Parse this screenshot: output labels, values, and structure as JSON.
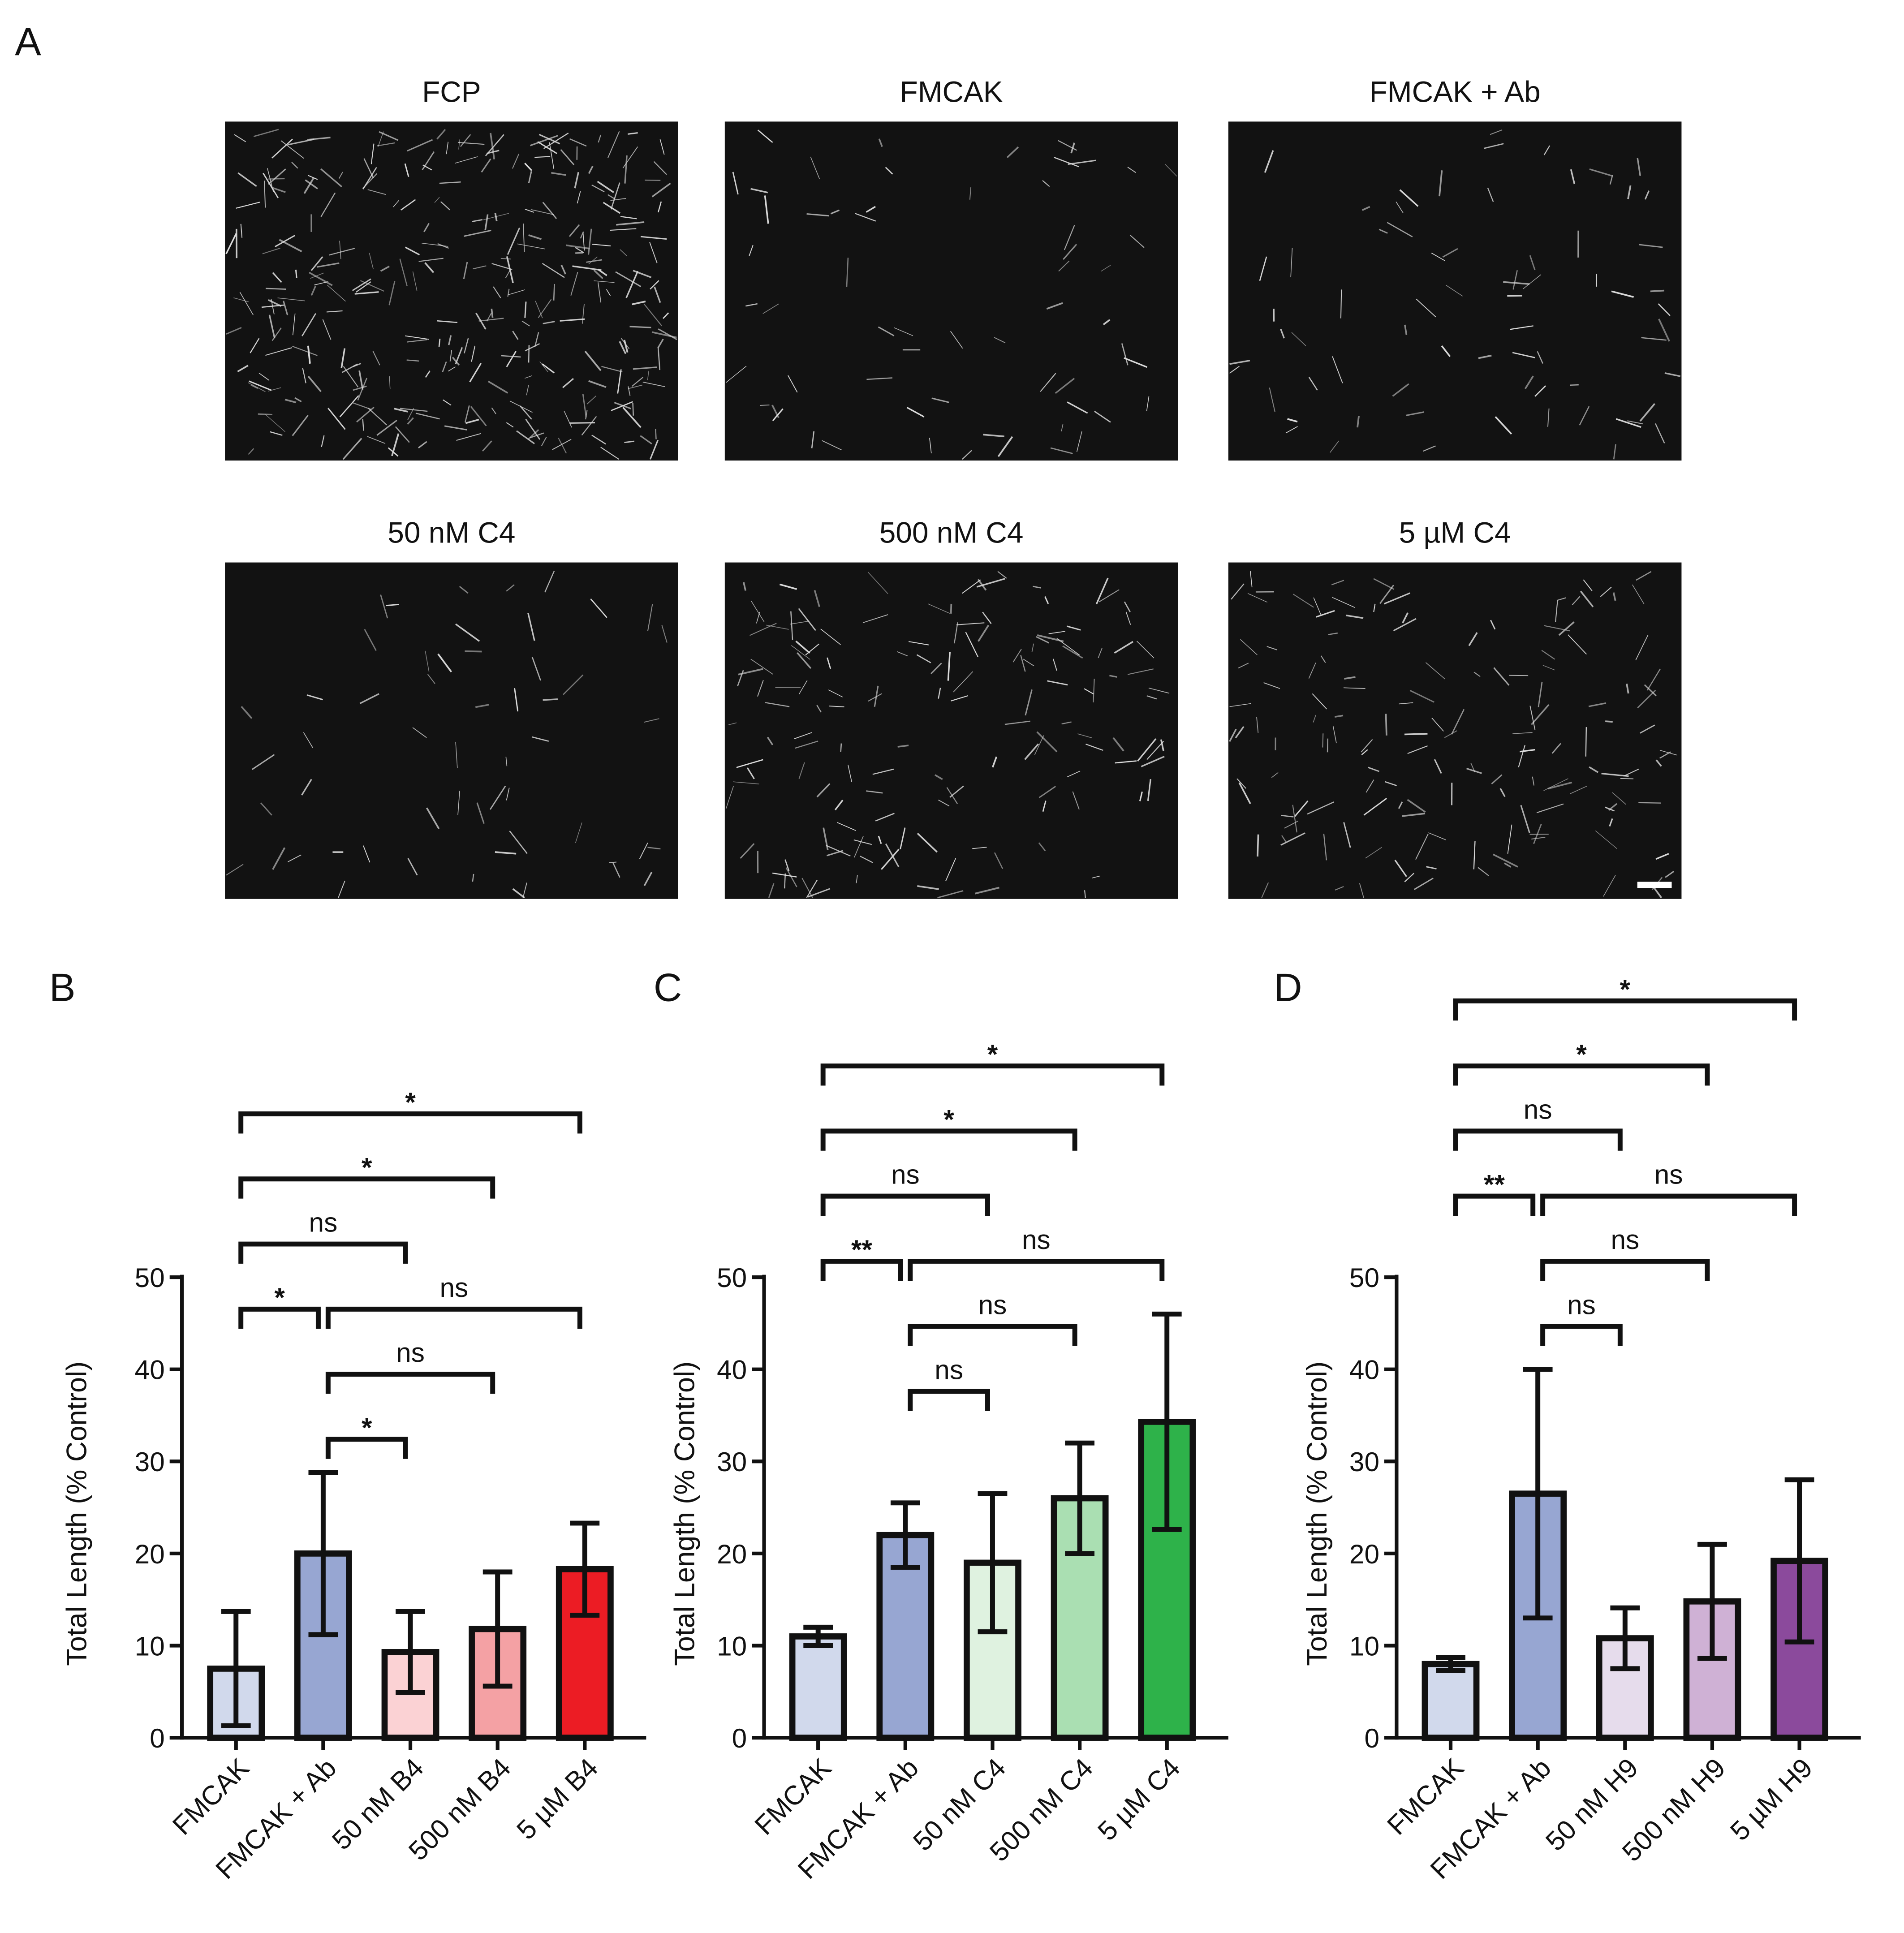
{
  "figure": {
    "panel_label": "A",
    "images": [
      {
        "title": "FCP"
      },
      {
        "title": "FMCAK"
      },
      {
        "title": "FMCAK + Ab"
      },
      {
        "title": "50 nM C4"
      },
      {
        "title": "500 nM C4"
      },
      {
        "title": "5 µM C4"
      }
    ]
  },
  "chart_data": [
    {
      "type": "bar",
      "panel_label": "B",
      "y_label": "Total Length  (% Control)",
      "categories": [
        "FMCAK",
        "FMCAK + Ab",
        "50 nM B4",
        "500 nM B4",
        "5 µM B4"
      ],
      "values": [
        7.5,
        20,
        9.3,
        11.8,
        18.3
      ],
      "errors": [
        6.2,
        8.8,
        4.4,
        6.2,
        5
      ],
      "colors": [
        "#d1d9ec",
        "#97a6d2",
        "#fbd2d4",
        "#f4a1a4",
        "#ec1c24"
      ],
      "ylim": [
        0,
        50
      ],
      "yticks": [
        0,
        10,
        20,
        30,
        40,
        50
      ],
      "brackets": [
        {
          "from": "FMCAK + Ab",
          "to": "50 nM B4",
          "label": "*"
        },
        {
          "from": "FMCAK + Ab",
          "to": "500 nM B4",
          "label": "ns"
        },
        {
          "from": "FMCAK",
          "to": "FMCAK + Ab",
          "label": "*"
        },
        {
          "from": "FMCAK + Ab",
          "to": "5 µM B4",
          "label": "ns"
        },
        {
          "from": "FMCAK",
          "to": "50 nM B4",
          "label": "ns"
        },
        {
          "from": "FMCAK",
          "to": "500 nM B4",
          "label": "*"
        },
        {
          "from": "FMCAK",
          "to": "5 µM B4",
          "label": "*"
        }
      ]
    },
    {
      "type": "bar",
      "panel_label": "C",
      "y_label": "Total Length  (% Control)",
      "categories": [
        "FMCAK",
        "FMCAK + Ab",
        "50 nM C4",
        "500 nM C4",
        "5 µM C4"
      ],
      "values": [
        11,
        22,
        19,
        26,
        34.3
      ],
      "errors": [
        1,
        3.5,
        7.5,
        6,
        11.7
      ],
      "colors": [
        "#d1d9ec",
        "#97a6d2",
        "#dff2e0",
        "#aadfb2",
        "#2eb24a"
      ],
      "ylim": [
        0,
        50
      ],
      "yticks": [
        0,
        10,
        20,
        30,
        40,
        50
      ],
      "brackets": [
        {
          "from": "FMCAK + Ab",
          "to": "50 nM C4",
          "label": "ns"
        },
        {
          "from": "FMCAK + Ab",
          "to": "500 nM C4",
          "label": "ns"
        },
        {
          "from": "FMCAK",
          "to": "FMCAK + Ab",
          "label": "**"
        },
        {
          "from": "FMCAK + Ab",
          "to": "5 µM C4",
          "label": "ns"
        },
        {
          "from": "FMCAK",
          "to": "50 nM C4",
          "label": "ns"
        },
        {
          "from": "FMCAK",
          "to": "500 nM C4",
          "label": "*"
        },
        {
          "from": "FMCAK",
          "to": "5 µM C4",
          "label": "*"
        }
      ]
    },
    {
      "type": "bar",
      "panel_label": "D",
      "y_label": "Total Length  (% Control)",
      "categories": [
        "FMCAK",
        "FMCAK + Ab",
        "50 nM H9",
        "500 nM H9",
        "5 µM H9"
      ],
      "values": [
        8,
        26.5,
        10.8,
        14.8,
        19.2
      ],
      "errors": [
        0.7,
        13.5,
        3.3,
        6.2,
        8.8
      ],
      "colors": [
        "#d1d9ec",
        "#97a6d2",
        "#e6dcec",
        "#cfb1d5",
        "#8b4a9c"
      ],
      "ylim": [
        0,
        50
      ],
      "yticks": [
        0,
        10,
        20,
        30,
        40,
        50
      ],
      "brackets": [
        {
          "from": "FMCAK + Ab",
          "to": "50 nM H9",
          "label": "ns"
        },
        {
          "from": "FMCAK + Ab",
          "to": "500 nM H9",
          "label": "ns"
        },
        {
          "from": "FMCAK",
          "to": "FMCAK + Ab",
          "label": "**"
        },
        {
          "from": "FMCAK + Ab",
          "to": "5 µM H9",
          "label": "ns"
        },
        {
          "from": "FMCAK",
          "to": "50 nM H9",
          "label": "ns"
        },
        {
          "from": "FMCAK",
          "to": "500 nM H9",
          "label": "*"
        },
        {
          "from": "FMCAK",
          "to": "5 µM H9",
          "label": "*"
        }
      ]
    }
  ]
}
